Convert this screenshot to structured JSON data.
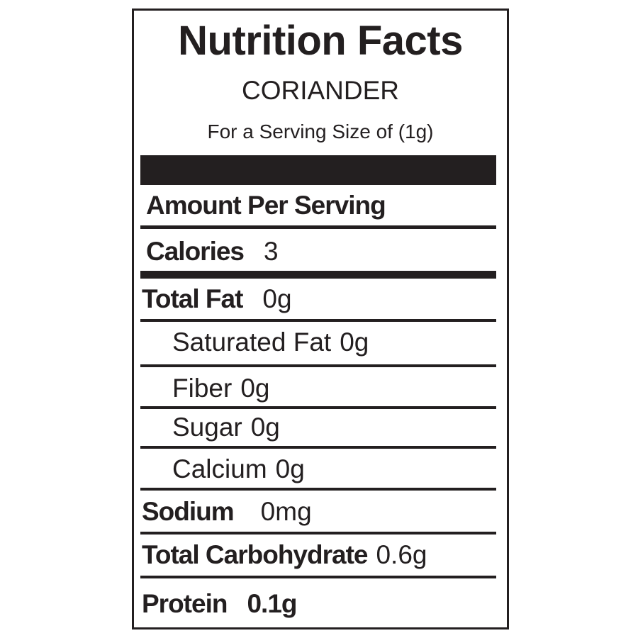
{
  "label": {
    "title": "Nutrition Facts",
    "product": "CORIANDER",
    "serving": "For a Serving Size of (1g)",
    "amount_per_serving": "Amount Per Serving",
    "calories": {
      "label": "Calories",
      "value": "3"
    },
    "total_fat": {
      "label": "Total Fat",
      "value": "0g"
    },
    "saturated_fat": {
      "label": "Saturated Fat",
      "value": "0g"
    },
    "fiber": {
      "label": "Fiber",
      "value": "0g"
    },
    "sugar": {
      "label": "Sugar",
      "value": "0g"
    },
    "calcium": {
      "label": "Calcium",
      "value": "0g"
    },
    "sodium": {
      "label": "Sodium",
      "value": "0mg"
    },
    "total_carbohydrate": {
      "label": "Total Carbohydrate",
      "value": "0.6g"
    },
    "protein": {
      "label": "Protein",
      "value": "0.1g"
    }
  }
}
